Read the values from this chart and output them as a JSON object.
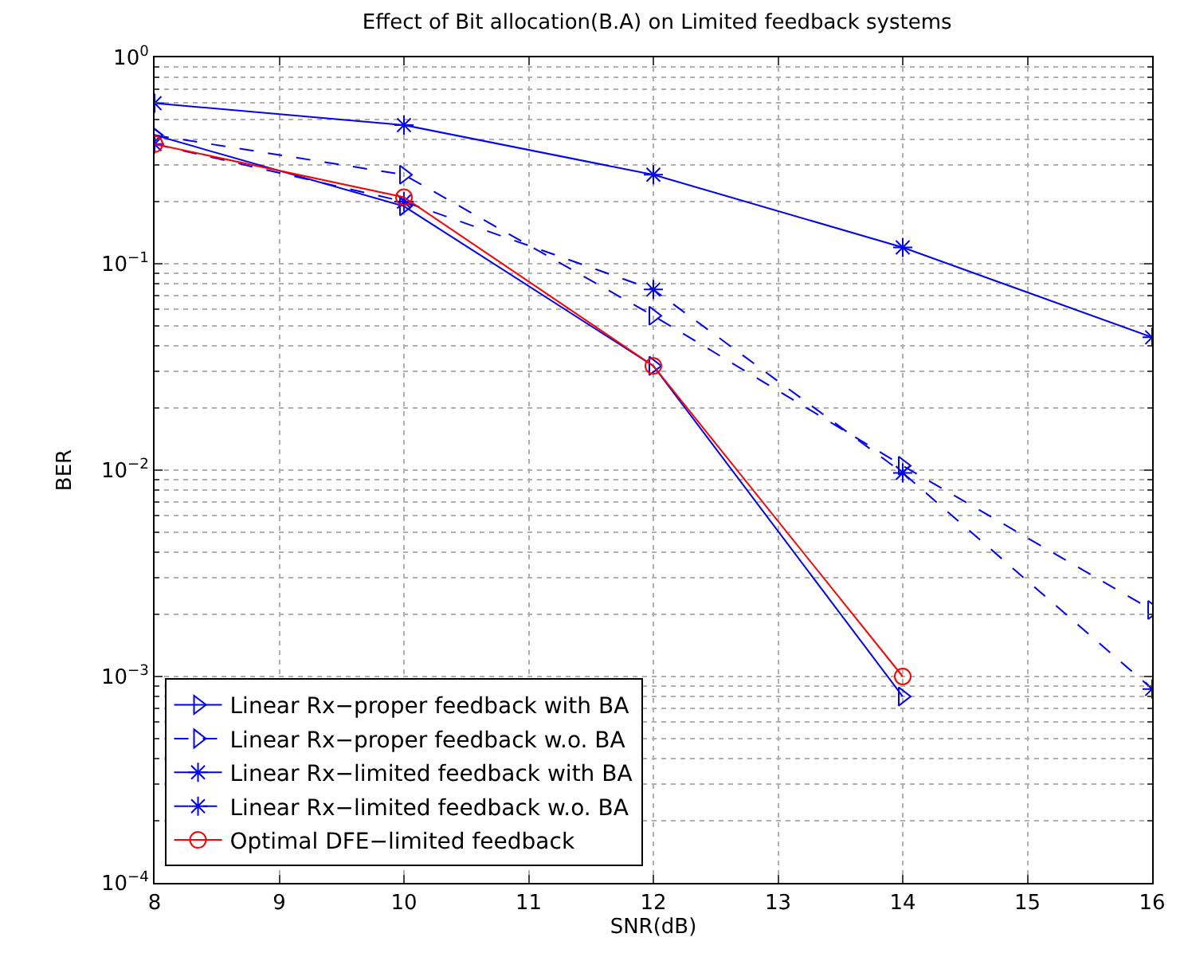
{
  "chart_data": {
    "type": "line",
    "title": "Effect of Bit allocation(B.A) on Limited feedback systems",
    "xlabel": "SNR(dB)",
    "ylabel": "BER",
    "log": "y",
    "grid": true,
    "legend": "bottom left",
    "xlim": [
      8,
      16
    ],
    "xticks": [
      8,
      9,
      10,
      11,
      12,
      13,
      14,
      15,
      16
    ],
    "ylim": [
      0.0001,
      1
    ],
    "yticks": [
      {
        "value": 0.0001,
        "label": "10$^{−4}$"
      },
      {
        "value": 0.001,
        "label": "10$^{−3}$"
      },
      {
        "value": 0.01,
        "label": "10$^{−2}$"
      },
      {
        "value": 0.1,
        "label": "10$^{−1}$"
      },
      {
        "value": 1,
        "label": "10$^{0}$"
      }
    ],
    "series": [
      {
        "name": "Linear Rx−proper feedback with BA",
        "color": "#0000ff",
        "marker": "triangle",
        "line_style": "solid",
        "x": [
          8,
          10,
          12,
          14
        ],
        "values": [
          0.42,
          0.19,
          0.032,
          0.0008
        ]
      },
      {
        "name": "Linear Rx−proper feedback w.o. BA",
        "color": "#0000ff",
        "marker": "triangle",
        "line_style": "dashed",
        "x": [
          8,
          10,
          12,
          14,
          16
        ],
        "values": [
          0.42,
          0.27,
          0.056,
          0.0105,
          0.0021
        ]
      },
      {
        "name": "Linear Rx−limited feedback with BA",
        "color": "#0000ff",
        "marker": "cross",
        "line_style": "solid",
        "x": [
          8,
          10,
          12,
          14,
          16
        ],
        "values": [
          0.6,
          0.47,
          0.27,
          0.12,
          0.044
        ]
      },
      {
        "name": "Linear Rx−limited feedback w.o. BA",
        "color": "#0000ff",
        "marker": "cross",
        "line_style": "dashed",
        "x": [
          8,
          10,
          12,
          14,
          16
        ],
        "values": [
          0.38,
          0.2,
          0.075,
          0.0097,
          0.00087
        ]
      },
      {
        "name": "Optimal DFE−limited feedback",
        "color": "#ff0000",
        "marker": "circle",
        "line_style": "solid",
        "x": [
          8,
          10,
          12,
          14
        ],
        "values": [
          0.38,
          0.21,
          0.032,
          0.001
        ]
      }
    ]
  }
}
